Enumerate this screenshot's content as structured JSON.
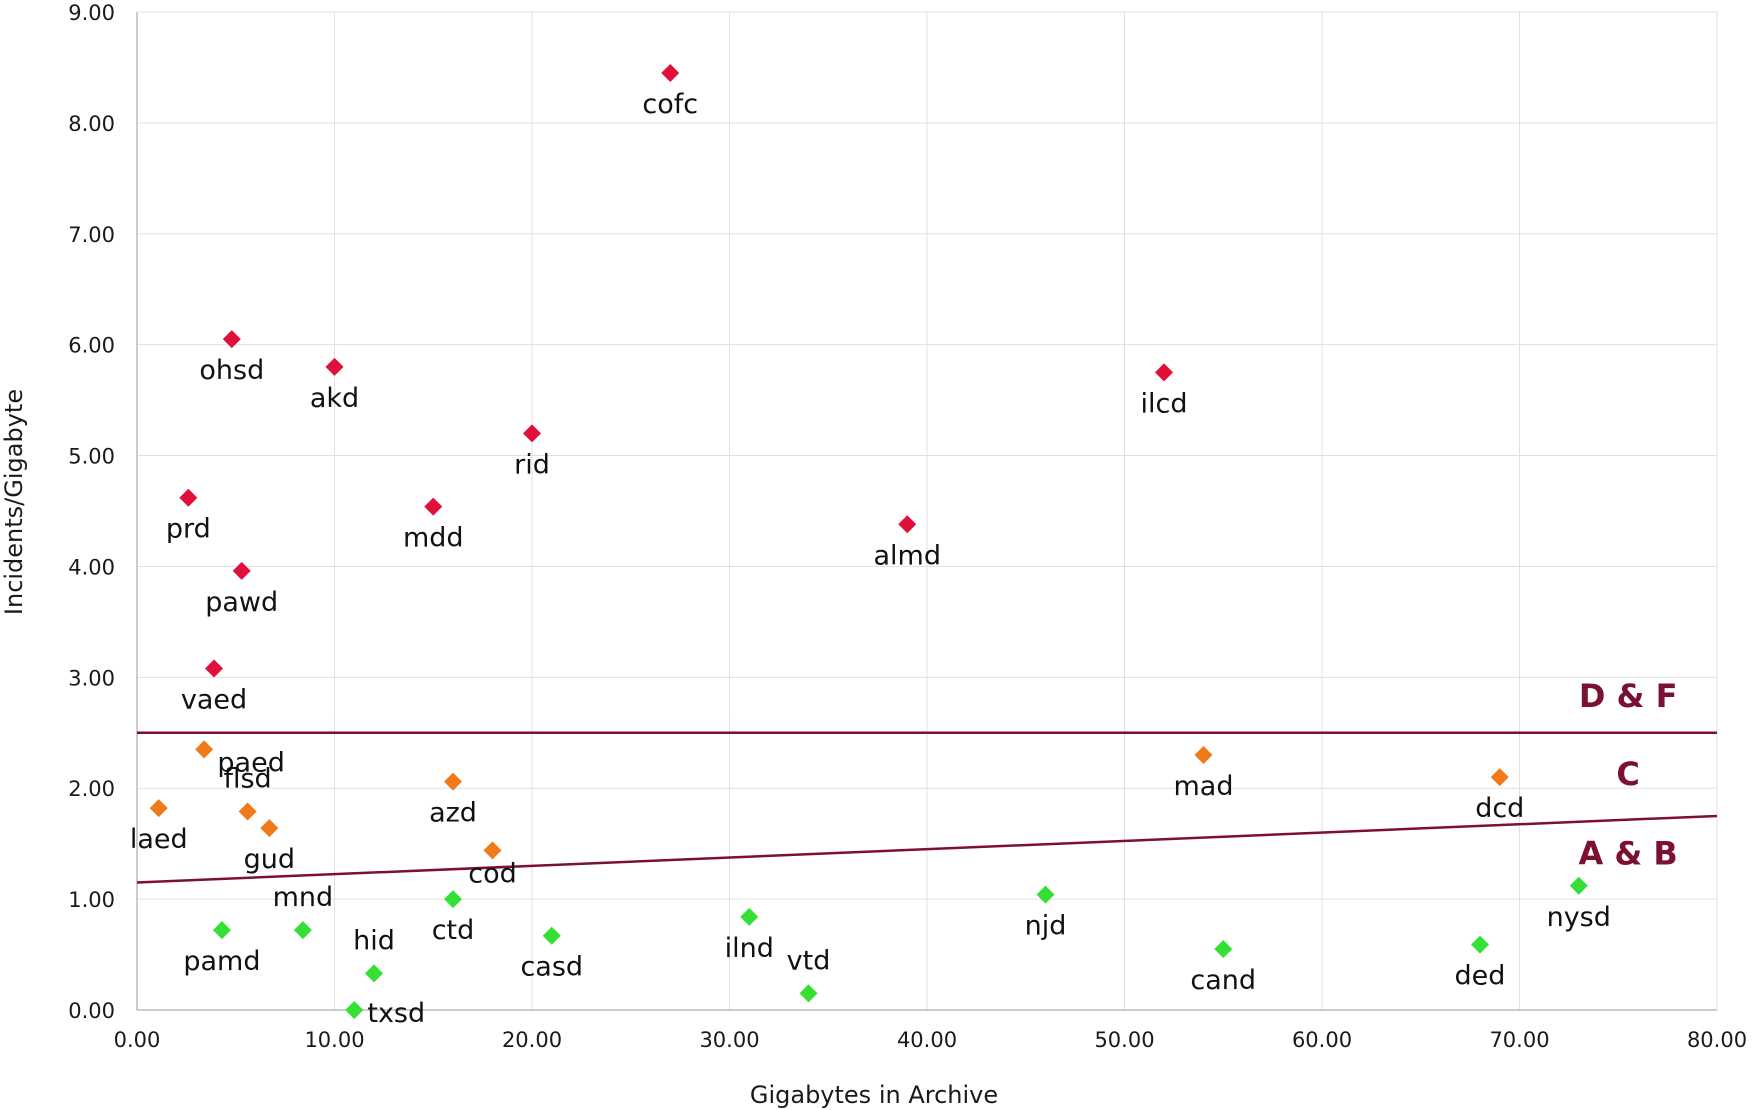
{
  "chart_data": {
    "type": "scatter",
    "xlabel": "Gigabytes in Archive",
    "ylabel": "Incidents/Gigabyte",
    "xlim": [
      0,
      80
    ],
    "ylim": [
      0,
      9
    ],
    "x_ticks": [
      "0.00",
      "10.00",
      "20.00",
      "30.00",
      "40.00",
      "50.00",
      "60.00",
      "70.00",
      "80.00"
    ],
    "y_ticks": [
      "0.00",
      "1.00",
      "2.00",
      "3.00",
      "4.00",
      "5.00",
      "6.00",
      "7.00",
      "8.00",
      "9.00"
    ],
    "grid": true,
    "colors": {
      "red": "#e0103a",
      "orange": "#f07a1a",
      "green": "#33e033",
      "line": "#7b1030"
    },
    "points": [
      {
        "label": "cofc",
        "x": 27.0,
        "y": 8.45,
        "group": "red"
      },
      {
        "label": "ohsd",
        "x": 4.8,
        "y": 6.05,
        "group": "red"
      },
      {
        "label": "akd",
        "x": 10.0,
        "y": 5.8,
        "group": "red"
      },
      {
        "label": "ilcd",
        "x": 52.0,
        "y": 5.75,
        "group": "red"
      },
      {
        "label": "rid",
        "x": 20.0,
        "y": 5.2,
        "group": "red"
      },
      {
        "label": "prd",
        "x": 2.6,
        "y": 4.62,
        "group": "red"
      },
      {
        "label": "mdd",
        "x": 15.0,
        "y": 4.54,
        "group": "red"
      },
      {
        "label": "almd",
        "x": 39.0,
        "y": 4.38,
        "group": "red"
      },
      {
        "label": "pawd",
        "x": 5.3,
        "y": 3.96,
        "group": "red"
      },
      {
        "label": "vaed",
        "x": 3.9,
        "y": 3.08,
        "group": "red"
      },
      {
        "label": "paed",
        "x": 3.4,
        "y": 2.35,
        "group": "orange"
      },
      {
        "label": "mad",
        "x": 54.0,
        "y": 2.3,
        "group": "orange"
      },
      {
        "label": "dcd",
        "x": 69.0,
        "y": 2.1,
        "group": "orange"
      },
      {
        "label": "azd",
        "x": 16.0,
        "y": 2.06,
        "group": "orange"
      },
      {
        "label": "laed",
        "x": 1.1,
        "y": 1.82,
        "group": "orange"
      },
      {
        "label": "flsd",
        "x": 5.6,
        "y": 1.79,
        "group": "orange"
      },
      {
        "label": "gud",
        "x": 6.7,
        "y": 1.64,
        "group": "orange"
      },
      {
        "label": "cod",
        "x": 18.0,
        "y": 1.44,
        "group": "orange"
      },
      {
        "label": "nysd",
        "x": 73.0,
        "y": 1.12,
        "group": "green"
      },
      {
        "label": "njd",
        "x": 46.0,
        "y": 1.04,
        "group": "green"
      },
      {
        "label": "ctd",
        "x": 16.0,
        "y": 1.0,
        "group": "green"
      },
      {
        "label": "ilnd",
        "x": 31.0,
        "y": 0.84,
        "group": "green"
      },
      {
        "label": "pamd",
        "x": 4.3,
        "y": 0.72,
        "group": "green"
      },
      {
        "label": "mnd",
        "x": 8.4,
        "y": 0.72,
        "group": "green"
      },
      {
        "label": "casd",
        "x": 21.0,
        "y": 0.67,
        "group": "green"
      },
      {
        "label": "ded",
        "x": 68.0,
        "y": 0.59,
        "group": "green"
      },
      {
        "label": "cand",
        "x": 55.0,
        "y": 0.55,
        "group": "green"
      },
      {
        "label": "hid",
        "x": 12.0,
        "y": 0.33,
        "group": "green"
      },
      {
        "label": "vtd",
        "x": 34.0,
        "y": 0.15,
        "group": "green"
      },
      {
        "label": "txsd",
        "x": 11.0,
        "y": 0.0,
        "group": "green"
      }
    ],
    "threshold_lines": [
      {
        "name": "D & F",
        "x": [
          0,
          80
        ],
        "y": [
          2.5,
          2.5
        ]
      },
      {
        "name": "A & B",
        "x": [
          0,
          80
        ],
        "y": [
          1.15,
          1.75
        ]
      }
    ],
    "zone_labels": [
      {
        "text": "D & F",
        "x": 75.5,
        "y": 2.83
      },
      {
        "text": "C",
        "x": 75.5,
        "y": 2.13
      },
      {
        "text": "A & B",
        "x": 75.5,
        "y": 1.41
      }
    ]
  }
}
